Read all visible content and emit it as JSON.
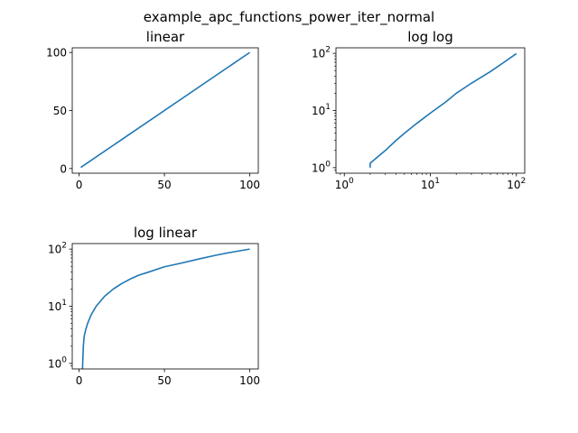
{
  "figure": {
    "suptitle": "example_apc_functions_power_iter_normal"
  },
  "chart_data": [
    {
      "type": "line",
      "title": "linear",
      "xlabel": "",
      "ylabel": "",
      "xscale": "linear",
      "yscale": "linear",
      "xlim": [
        -4,
        105
      ],
      "ylim": [
        -4,
        104
      ],
      "xticks": [
        0,
        50,
        100
      ],
      "yticks": [
        0,
        50,
        100
      ],
      "xtick_labels": [
        "0",
        "50",
        "100"
      ],
      "ytick_labels": [
        "0",
        "50",
        "100"
      ],
      "grid": false,
      "color": "#1f77b4",
      "series": [
        {
          "x": [
            1,
            100
          ],
          "y": [
            1,
            100
          ]
        }
      ]
    },
    {
      "type": "line",
      "title": "log log",
      "xlabel": "",
      "ylabel": "",
      "xscale": "log",
      "yscale": "log",
      "xlim": [
        0.8,
        125
      ],
      "ylim": [
        0.8,
        125
      ],
      "xticks": [
        1,
        10,
        100
      ],
      "yticks": [
        1,
        10,
        100
      ],
      "xtick_labels": [
        [
          "10",
          "0"
        ],
        [
          "10",
          "1"
        ],
        [
          "10",
          "2"
        ]
      ],
      "ytick_labels": [
        [
          "10",
          "0"
        ],
        [
          "10",
          "1"
        ],
        [
          "10",
          "2"
        ]
      ],
      "grid": false,
      "color": "#1f77b4",
      "series": [
        {
          "x": [
            2,
            2,
            3,
            4,
            5,
            7,
            10,
            15,
            20,
            30,
            50,
            70,
            100
          ],
          "y": [
            1,
            1.2,
            2,
            3,
            4,
            6,
            9,
            14,
            20,
            30,
            48,
            68,
            99
          ]
        }
      ]
    },
    {
      "type": "line",
      "title": "log linear",
      "xlabel": "",
      "ylabel": "",
      "xscale": "linear",
      "yscale": "log",
      "xlim": [
        -4,
        105
      ],
      "ylim": [
        0.8,
        125
      ],
      "xticks": [
        0,
        50,
        100
      ],
      "yticks": [
        1,
        10,
        100
      ],
      "xtick_labels": [
        "0",
        "50",
        "100"
      ],
      "ytick_labels": [
        [
          "10",
          "0"
        ],
        [
          "10",
          "1"
        ],
        [
          "10",
          "2"
        ]
      ],
      "grid": false,
      "color": "#1f77b4",
      "series": [
        {
          "x": [
            2,
            2.5,
            3,
            4,
            5,
            7,
            10,
            15,
            20,
            25,
            30,
            35,
            40,
            50,
            60,
            70,
            80,
            90,
            100
          ],
          "y": [
            0.8,
            2,
            3,
            4,
            5,
            7,
            10,
            15,
            20,
            25,
            30,
            35,
            39,
            49,
            57,
            67,
            78,
            89,
            100
          ]
        }
      ]
    }
  ]
}
